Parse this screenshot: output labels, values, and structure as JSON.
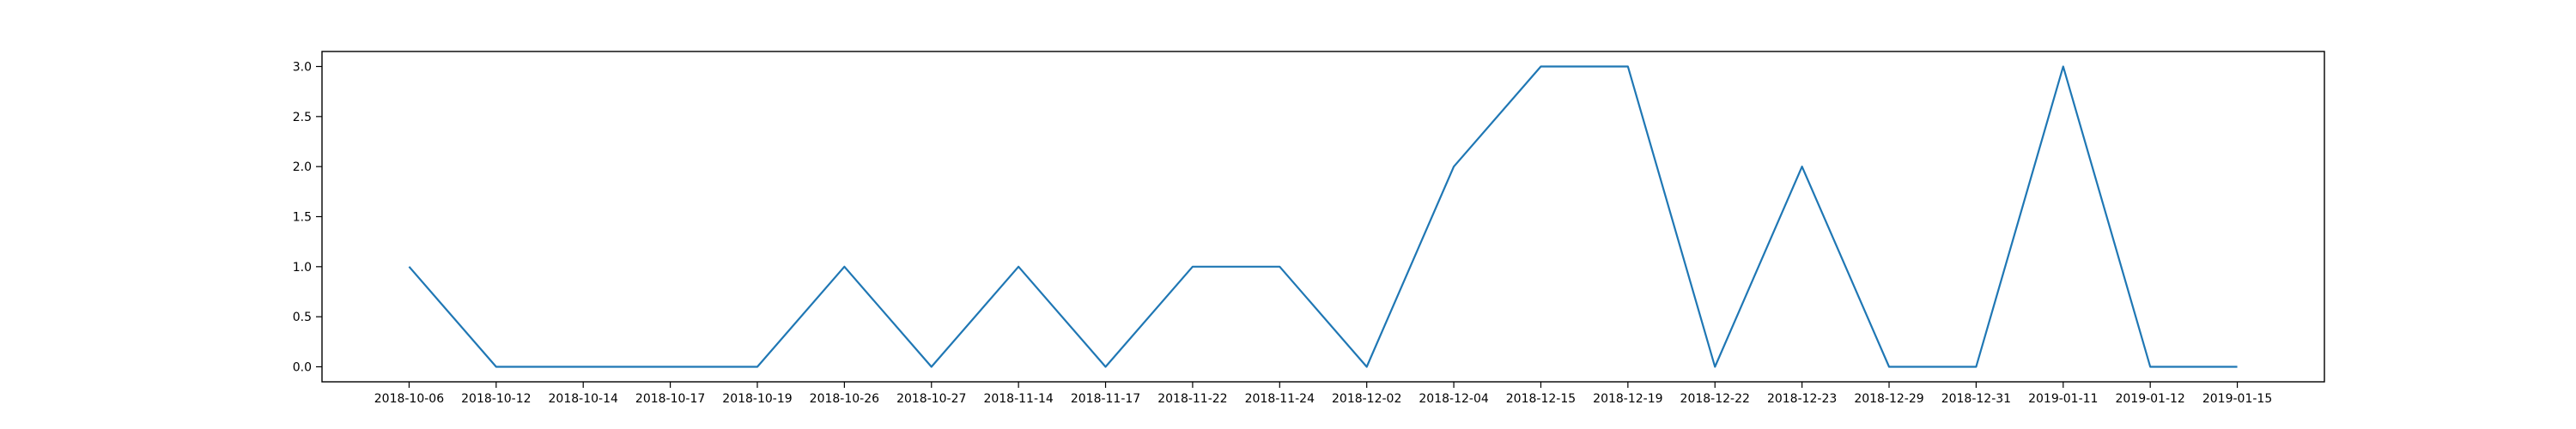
{
  "chart_data": {
    "type": "line",
    "title": "",
    "xlabel": "",
    "ylabel": "",
    "x": [
      "2018-10-06",
      "2018-10-12",
      "2018-10-14",
      "2018-10-17",
      "2018-10-19",
      "2018-10-26",
      "2018-10-27",
      "2018-11-14",
      "2018-11-17",
      "2018-11-22",
      "2018-11-24",
      "2018-12-02",
      "2018-12-04",
      "2018-12-15",
      "2018-12-19",
      "2018-12-22",
      "2018-12-23",
      "2018-12-29",
      "2018-12-31",
      "2019-01-11",
      "2019-01-12",
      "2019-01-15"
    ],
    "series": [
      {
        "values": [
          1,
          0,
          0,
          0,
          0,
          1,
          0,
          1,
          0,
          1,
          1,
          0,
          2,
          3,
          3,
          0,
          2,
          0,
          0,
          3,
          0,
          0
        ],
        "color": "#1f77b4"
      }
    ],
    "ylim": [
      -0.15,
      3.15
    ],
    "yticks": [
      "0.0",
      "0.5",
      "1.0",
      "1.5",
      "2.0",
      "2.5",
      "3.0"
    ],
    "grid": false,
    "legend": false
  }
}
